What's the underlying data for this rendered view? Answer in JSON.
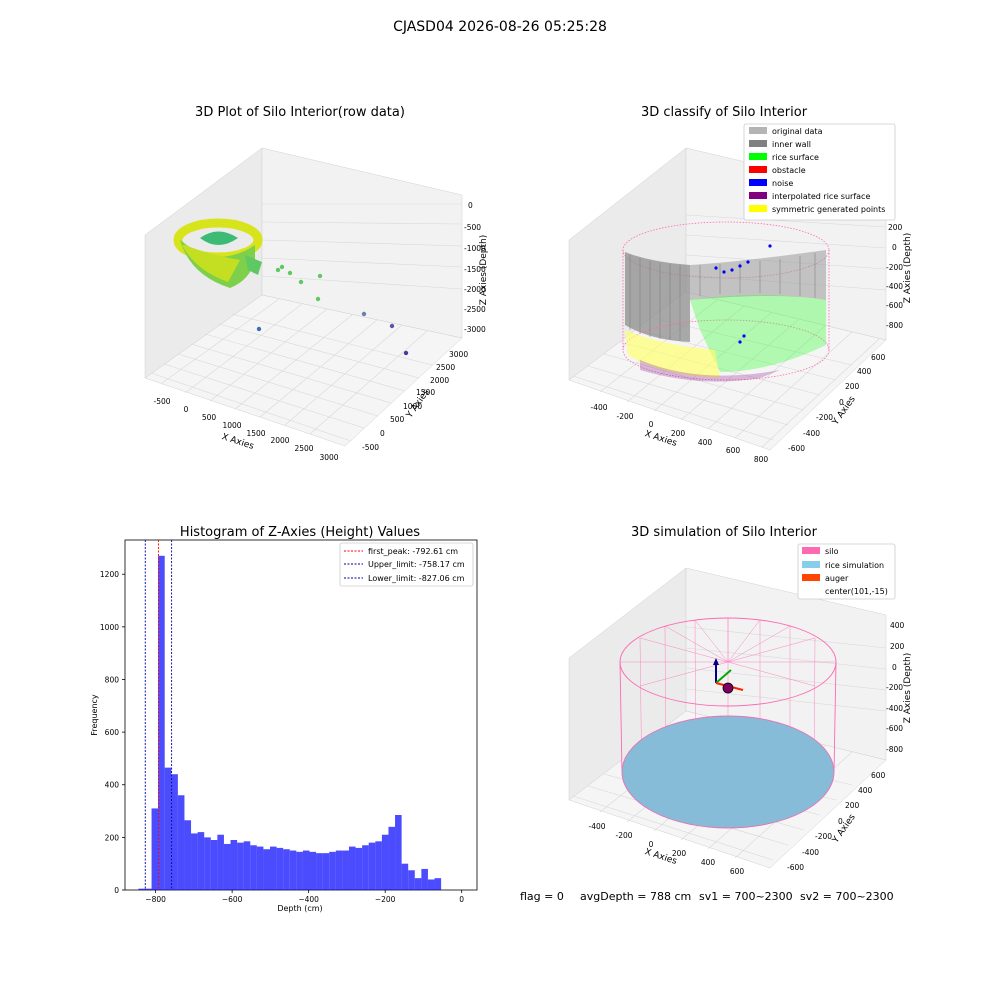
{
  "suptitle": "CJASD04 2026-08-26 05:25:28",
  "status_line": {
    "flag": "flag = 0",
    "avg_depth": "avgDepth = 788 cm",
    "sv1": "sv1 = 700~2300",
    "sv2": "sv2 = 700~2300"
  },
  "chart_data": [
    {
      "type": "scatter",
      "title": "3D Plot of Silo Interior(row data)",
      "xlabel": "X Axies",
      "ylabel": "Y Axies",
      "zlabel": "Z Axies (Depth)",
      "x_ticks": [
        "-500",
        "0",
        "500",
        "1000",
        "1500",
        "2000",
        "2500",
        "3000"
      ],
      "y_ticks": [
        "-500",
        "0",
        "500",
        "1000",
        "1500",
        "2000",
        "2500",
        "3000"
      ],
      "z_ticks": [
        "0",
        "-500",
        "-1000",
        "-1500",
        "-2000",
        "-2500",
        "-3000"
      ],
      "outlier_points": [
        {
          "x": 700,
          "y": 300,
          "z": -1500
        },
        {
          "x": 850,
          "y": 400,
          "z": -1400
        },
        {
          "x": 1000,
          "y": 500,
          "z": -1600
        },
        {
          "x": 1200,
          "y": 700,
          "z": -1800
        },
        {
          "x": 1400,
          "y": 900,
          "z": -1500
        },
        {
          "x": 1500,
          "y": 1100,
          "z": -2000
        },
        {
          "x": 900,
          "y": 300,
          "z": -2900
        },
        {
          "x": 2200,
          "y": 1800,
          "z": -2600
        },
        {
          "x": 2600,
          "y": 2100,
          "z": -2700
        },
        {
          "x": 2900,
          "y": 2700,
          "z": -3000
        }
      ],
      "colormap": "viridis"
    },
    {
      "type": "scatter",
      "title": "3D classify of Silo Interior",
      "xlabel": "X Axies",
      "ylabel": "Y Axies",
      "zlabel": "Z Axies (Depth)",
      "x_ticks": [
        "-400",
        "-200",
        "0",
        "200",
        "400",
        "600",
        "800"
      ],
      "y_ticks": [
        "-600",
        "-400",
        "-200",
        "0",
        "200",
        "400",
        "600"
      ],
      "z_ticks": [
        "200",
        "0",
        "-200",
        "-400",
        "-600",
        "-800"
      ],
      "legend": [
        {
          "label": "original data",
          "color": "#b4b4b4"
        },
        {
          "label": "inner wall",
          "color": "#808080"
        },
        {
          "label": "rice surface",
          "color": "#00ff00"
        },
        {
          "label": "obstacle",
          "color": "#ff0000"
        },
        {
          "label": "noise",
          "color": "#0000ff"
        },
        {
          "label": "interpolated rice surface",
          "color": "#800080"
        },
        {
          "label": "symmetric generated points",
          "color": "#ffff00"
        }
      ]
    },
    {
      "type": "bar",
      "title": "Histogram of Z-Axies (Height) Values",
      "xlabel": "Depth (cm)",
      "ylabel": "Frequency",
      "xlim": [
        -880,
        40
      ],
      "ylim": [
        0,
        1330
      ],
      "x_ticks": [
        -800,
        -600,
        -400,
        -200,
        0
      ],
      "y_ticks": [
        0,
        200,
        400,
        600,
        800,
        1000,
        1200
      ],
      "bin_start": -845,
      "bin_width": 17.2,
      "values": [
        5,
        5,
        310,
        1270,
        465,
        440,
        360,
        265,
        215,
        220,
        200,
        190,
        210,
        175,
        190,
        180,
        185,
        170,
        165,
        155,
        165,
        160,
        155,
        150,
        145,
        150,
        145,
        140,
        140,
        145,
        150,
        150,
        165,
        160,
        170,
        180,
        185,
        210,
        240,
        285,
        100,
        75,
        45,
        80,
        40,
        45
      ],
      "bar_color": "#0000ff",
      "vlines": [
        {
          "label": "first_peak: -792.61 cm",
          "x": -792.61,
          "color": "#ff0000"
        },
        {
          "label": "Upper_limit: -758.17 cm",
          "x": -758.17,
          "color": "#0000a0"
        },
        {
          "label": "Lower_limit: -827.06 cm",
          "x": -827.06,
          "color": "#0000a0"
        }
      ]
    },
    {
      "type": "scatter",
      "title": "3D simulation of Silo Interior",
      "xlabel": "X Axies",
      "ylabel": "Y Axies",
      "zlabel": "Z Axies (Depth)",
      "x_ticks": [
        "-400",
        "-200",
        "0",
        "200",
        "400",
        "600"
      ],
      "y_ticks": [
        "-600",
        "-400",
        "-200",
        "0",
        "200",
        "400",
        "600"
      ],
      "z_ticks": [
        "400",
        "200",
        "0",
        "-200",
        "-400",
        "-600",
        "-800"
      ],
      "legend": [
        {
          "label": "silo",
          "color": "#ff69b4"
        },
        {
          "label": "rice simulation",
          "color": "#87ceeb"
        },
        {
          "label": "auger",
          "color": "#ff4500"
        },
        {
          "label": "center(101,-15)",
          "color": ""
        }
      ]
    }
  ]
}
